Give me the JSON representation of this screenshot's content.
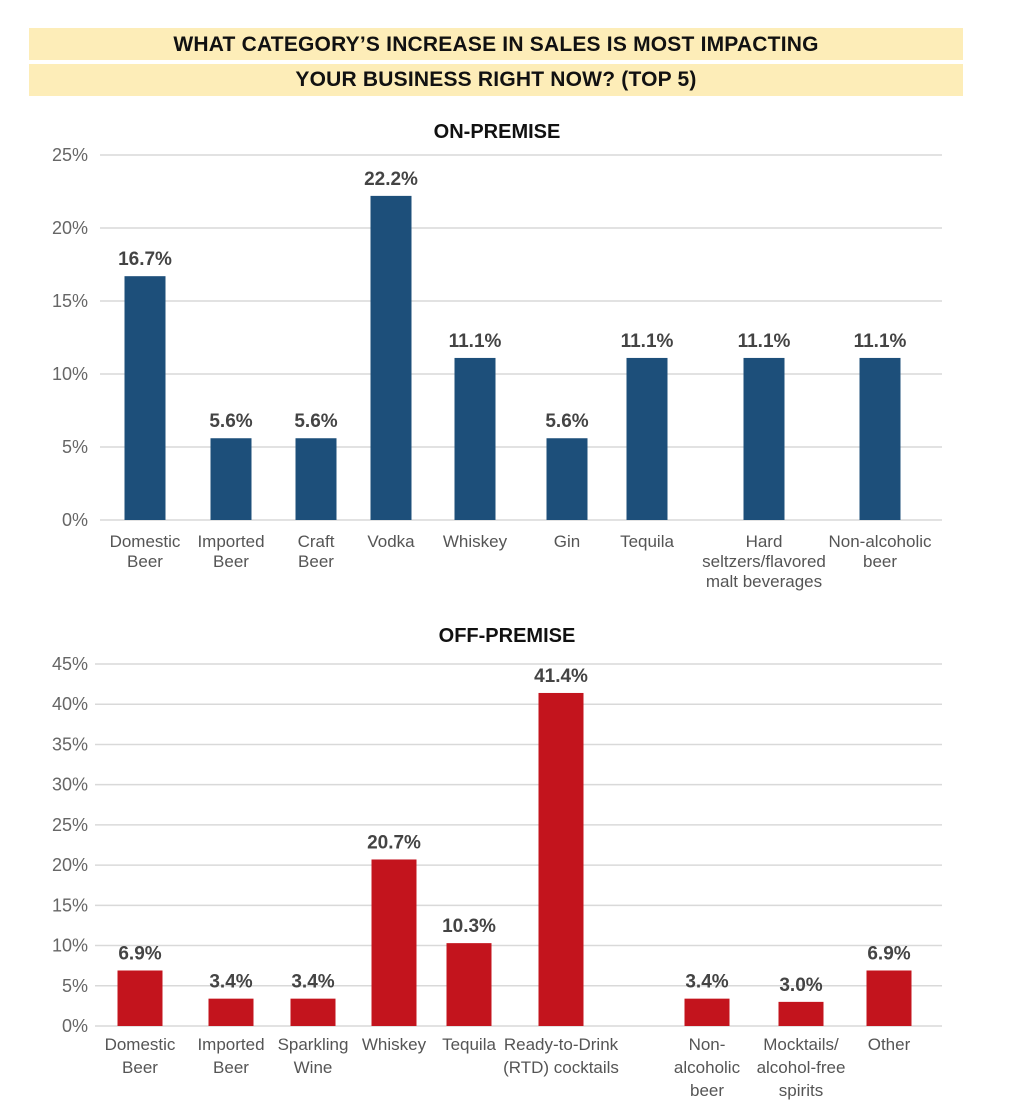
{
  "header": {
    "line1": "WHAT CATEGORY’S INCREASE IN SALES IS MOST IMPACTING",
    "line2": "YOUR BUSINESS RIGHT NOW? (TOP 5)"
  },
  "colors": {
    "banner_bg": "#fdedb8",
    "on_premise_bar": "#1d4f7a",
    "off_premise_bar": "#c3141d"
  },
  "chart_data": [
    {
      "type": "bar",
      "title": "ON-PREMISE",
      "xlabel": "",
      "ylabel": "",
      "ylim": [
        0,
        25
      ],
      "yticks": [
        "0%",
        "5%",
        "10%",
        "15%",
        "20%",
        "25%"
      ],
      "grid": true,
      "categories": [
        [
          "Domestic",
          "Beer"
        ],
        [
          "Imported",
          "Beer"
        ],
        [
          "Craft",
          "Beer"
        ],
        [
          "Vodka"
        ],
        [
          "Whiskey"
        ],
        [
          "Gin"
        ],
        [
          "Tequila"
        ],
        [
          "Hard",
          "seltzers/flavored",
          "malt beverages"
        ],
        [
          "Non-alcoholic",
          "beer"
        ]
      ],
      "values": [
        16.7,
        5.6,
        5.6,
        22.2,
        11.1,
        5.6,
        11.1,
        11.1,
        11.1
      ],
      "labels": [
        "16.7%",
        "5.6%",
        "5.6%",
        "22.2%",
        "11.1%",
        "5.6%",
        "11.1%",
        "11.1%",
        "11.1%"
      ]
    },
    {
      "type": "bar",
      "title": "OFF-PREMISE",
      "xlabel": "",
      "ylabel": "",
      "ylim": [
        0,
        45
      ],
      "yticks": [
        "0%",
        "5%",
        "10%",
        "15%",
        "20%",
        "25%",
        "30%",
        "35%",
        "40%",
        "45%"
      ],
      "grid": true,
      "categories": [
        [
          "Domestic",
          "Beer"
        ],
        [
          "Imported",
          "Beer"
        ],
        [
          "Sparkling",
          "Wine"
        ],
        [
          "Whiskey"
        ],
        [
          "Tequila"
        ],
        [
          "Ready-to-Drink",
          "(RTD) cocktails"
        ],
        [
          "Non-",
          "alcoholic",
          "beer"
        ],
        [
          "Mocktails/",
          "alcohol-free",
          "spirits"
        ],
        [
          "Other"
        ]
      ],
      "values": [
        6.9,
        3.4,
        3.4,
        20.7,
        10.3,
        41.4,
        3.4,
        3.0,
        6.9
      ],
      "labels": [
        "6.9%",
        "3.4%",
        "3.4%",
        "20.7%",
        "10.3%",
        "41.4%",
        "3.4%",
        "3.0%",
        "6.9%"
      ]
    }
  ]
}
